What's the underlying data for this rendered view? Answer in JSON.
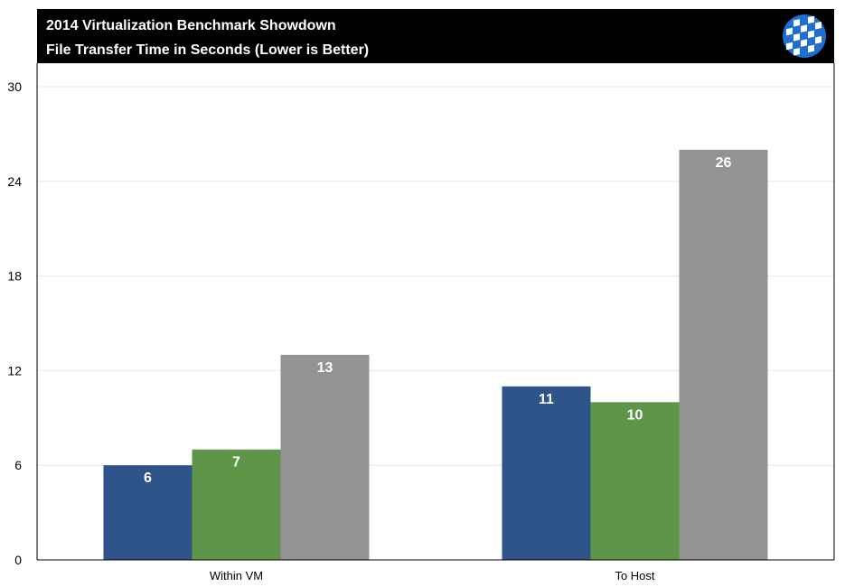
{
  "header": {
    "title": "2014 Virtualization Benchmark Showdown",
    "subtitle": "File Transfer Time in Seconds (Lower is Better)",
    "background": "#000000",
    "logo_icon": "globe-grid-logo-icon"
  },
  "chart_data": {
    "type": "bar",
    "title": "2014 Virtualization Benchmark Showdown",
    "subtitle": "File Transfer Time in Seconds (Lower is Better)",
    "xlabel": "",
    "ylabel": "",
    "categories": [
      "Within VM",
      "To Host"
    ],
    "series": [
      {
        "values": [
          6,
          11
        ],
        "color": "#2e5389"
      },
      {
        "values": [
          7,
          10
        ],
        "color": "#5f9548"
      },
      {
        "values": [
          13,
          26
        ],
        "color": "#939393"
      }
    ],
    "ylim": [
      0,
      30
    ],
    "yticks": [
      "0",
      "6",
      "12",
      "18",
      "24",
      "30"
    ],
    "grid": true,
    "legend": "none"
  }
}
